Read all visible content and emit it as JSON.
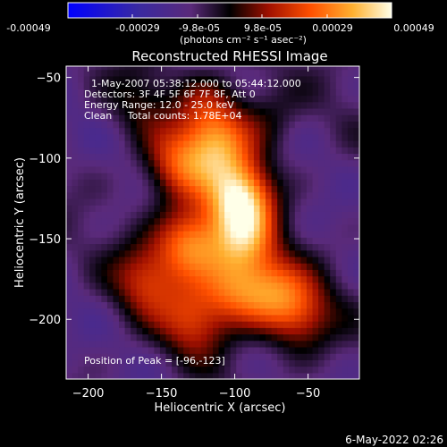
{
  "chart_data": {
    "type": "heatmap",
    "title": "Reconstructed RHESSI Image",
    "xlabel": "Heliocentric X (arcsec)",
    "ylabel": "Heliocentric Y (arcsec)",
    "xlim": [
      -215,
      -15
    ],
    "ylim": [
      -237,
      -43
    ],
    "x_ticks": [
      -200,
      -150,
      -100,
      -50
    ],
    "y_ticks": [
      -50,
      -100,
      -150,
      -200
    ],
    "colorbar": {
      "ticks": [
        "-0.00049",
        "-0.00029",
        "-9.8e-05",
        "9.8e-05",
        "0.00029",
        "0.00049"
      ],
      "label": "(photons cm⁻² s⁻¹ asec⁻²)",
      "range": [
        -0.00049,
        0.00049
      ]
    },
    "annotations": [
      "1-May-2007 05:38:12.000 to 05:44:12.000",
      "Detectors: 3F 4F 5F 6F 7F 8F, Att 0",
      "Energy Range: 12.0 - 25.0 keV",
      "Clean     Total counts: 1.78E+04"
    ],
    "peak_label": "Position of Peak = [-96,-123]",
    "peak": [
      -96,
      -123
    ],
    "hotspots": [
      {
        "x": -96,
        "y": -123,
        "value": 0.00049
      },
      {
        "x": -140,
        "y": -105,
        "value": 0.0003
      },
      {
        "x": -112,
        "y": -92,
        "value": 0.00035
      },
      {
        "x": -130,
        "y": -152,
        "value": 0.00042
      },
      {
        "x": -95,
        "y": -150,
        "value": 0.00033
      },
      {
        "x": -100,
        "y": -180,
        "value": 0.00032
      },
      {
        "x": -75,
        "y": -183,
        "value": 0.0003
      },
      {
        "x": -55,
        "y": -198,
        "value": 0.00028
      },
      {
        "x": -160,
        "y": -175,
        "value": 0.00027
      },
      {
        "x": -128,
        "y": -200,
        "value": 0.00028
      },
      {
        "x": -165,
        "y": -65,
        "value": 0.00012
      },
      {
        "x": -78,
        "y": -75,
        "value": 0.00013
      },
      {
        "x": -118,
        "y": -68,
        "value": 0.00018
      }
    ]
  },
  "footer": {
    "date": "6-May-2022 02:26"
  }
}
